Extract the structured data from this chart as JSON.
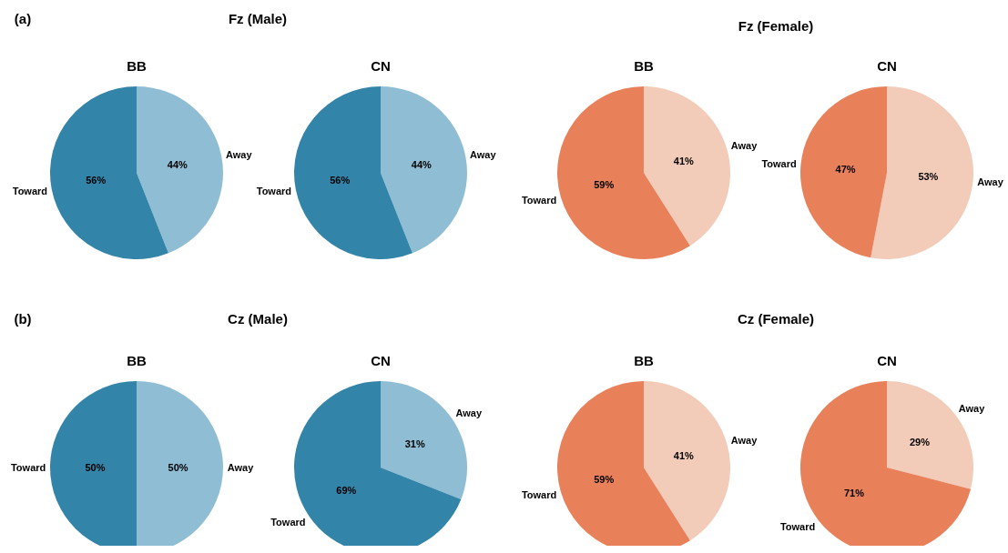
{
  "chart_data": [
    {
      "type": "other",
      "title": "Fz (Male)",
      "annotations": [
        "(a)"
      ]
    },
    {
      "type": "other",
      "title": "Fz (Female)"
    },
    {
      "type": "pie",
      "title": "BB",
      "categories": [
        "Away",
        "Toward"
      ],
      "values": [
        44,
        56
      ],
      "colors": [
        "#8fbdd4",
        "#3384a9"
      ],
      "value_labels": [
        "44%",
        "56%"
      ]
    },
    {
      "type": "pie",
      "title": "CN",
      "categories": [
        "Away",
        "Toward"
      ],
      "values": [
        44,
        56
      ],
      "colors": [
        "#8fbdd4",
        "#3384a9"
      ],
      "value_labels": [
        "44%",
        "56%"
      ]
    },
    {
      "type": "pie",
      "title": "BB",
      "categories": [
        "Away",
        "Toward"
      ],
      "values": [
        41,
        59
      ],
      "colors": [
        "#f2cbb9",
        "#e8805a"
      ],
      "value_labels": [
        "41%",
        "59%"
      ]
    },
    {
      "type": "pie",
      "title": "CN",
      "categories": [
        "Away",
        "Toward"
      ],
      "values": [
        53,
        47
      ],
      "colors": [
        "#f2cbb9",
        "#e8805a"
      ],
      "value_labels": [
        "53%",
        "47%"
      ]
    },
    {
      "type": "other",
      "title": "Cz (Male)",
      "annotations": [
        "(b)"
      ]
    },
    {
      "type": "other",
      "title": "Cz (Female)"
    },
    {
      "type": "pie",
      "title": "BB",
      "categories": [
        "Away",
        "Toward"
      ],
      "values": [
        50,
        50
      ],
      "colors": [
        "#8fbdd4",
        "#3384a9"
      ],
      "value_labels": [
        "50%",
        "50%"
      ]
    },
    {
      "type": "pie",
      "title": "CN",
      "categories": [
        "Away",
        "Toward"
      ],
      "values": [
        31,
        69
      ],
      "colors": [
        "#8fbdd4",
        "#3384a9"
      ],
      "value_labels": [
        "31%",
        "69%"
      ]
    },
    {
      "type": "pie",
      "title": "BB",
      "categories": [
        "Away",
        "Toward"
      ],
      "values": [
        41,
        59
      ],
      "colors": [
        "#f2cbb9",
        "#e8805a"
      ],
      "value_labels": [
        "41%",
        "59%"
      ]
    },
    {
      "type": "pie",
      "title": "CN",
      "categories": [
        "Away",
        "Toward"
      ],
      "values": [
        29,
        71
      ],
      "colors": [
        "#f2cbb9",
        "#e8805a"
      ],
      "value_labels": [
        "29%",
        "71%"
      ]
    }
  ]
}
